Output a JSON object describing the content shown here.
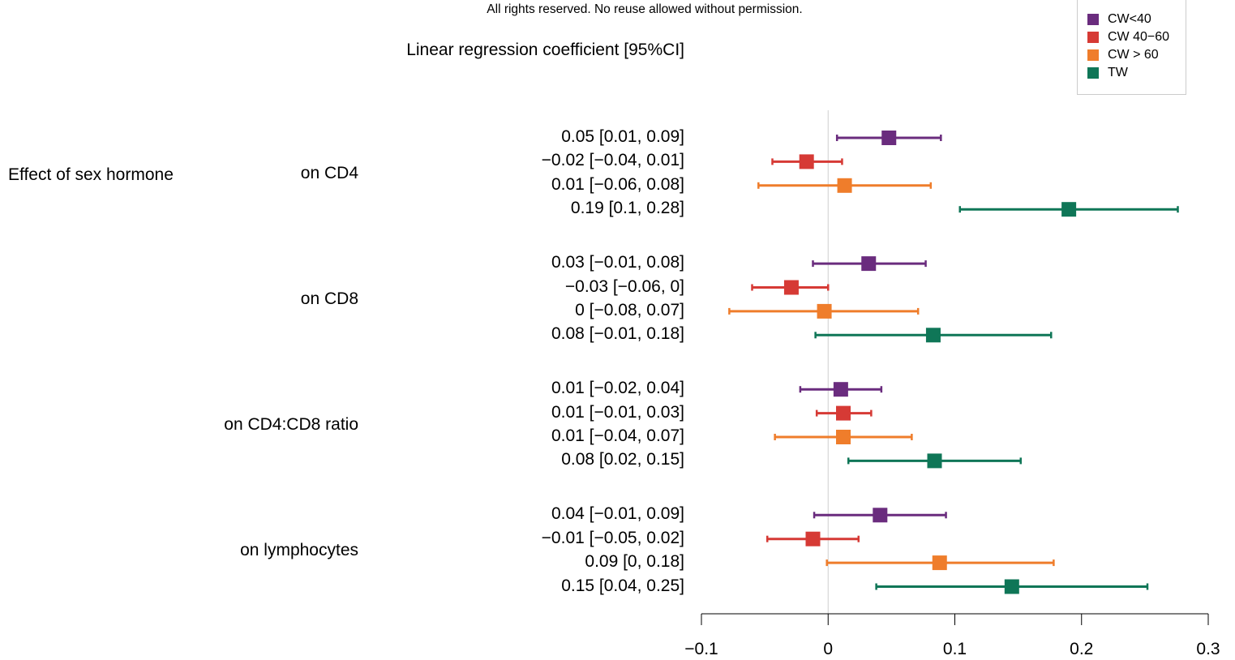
{
  "notice": {
    "line2": "All rights reserved. No reuse allowed without permission."
  },
  "ci_heading": "Linear regression coefficient [95%CI]",
  "effect_label": "Effect of sex hormone",
  "legend": [
    {
      "label": "CW<40",
      "color": "#6a2c7e"
    },
    {
      "label": "CW 40−60",
      "color": "#d63a35"
    },
    {
      "label": "CW > 60",
      "color": "#ef7d2b"
    },
    {
      "label": "TW",
      "color": "#0f7657"
    }
  ],
  "chart_data": {
    "type": "forest",
    "xlabel": "",
    "x_ticks": [
      -0.1,
      0,
      0.1,
      0.2,
      0.3
    ],
    "x_tick_labels": [
      "−0.1",
      "0",
      "0.1",
      "0.2",
      "0.3"
    ],
    "xlim": [
      -0.1,
      0.3
    ],
    "reference_line": 0,
    "groups": [
      {
        "outcome": "on CD4",
        "rows": [
          {
            "series": "CW<40",
            "estimate": 0.048,
            "low": 0.007,
            "high": 0.089,
            "label": "0.05 [0.01, 0.09]"
          },
          {
            "series": "CW 40−60",
            "estimate": -0.017,
            "low": -0.044,
            "high": 0.011,
            "label": "−0.02 [−0.04, 0.01]"
          },
          {
            "series": "CW > 60",
            "estimate": 0.013,
            "low": -0.055,
            "high": 0.081,
            "label": "0.01 [−0.06, 0.08]"
          },
          {
            "series": "TW",
            "estimate": 0.19,
            "low": 0.104,
            "high": 0.276,
            "label": "0.19 [0.1, 0.28]"
          }
        ]
      },
      {
        "outcome": "on CD8",
        "rows": [
          {
            "series": "CW<40",
            "estimate": 0.032,
            "low": -0.012,
            "high": 0.077,
            "label": "0.03 [−0.01, 0.08]"
          },
          {
            "series": "CW 40−60",
            "estimate": -0.029,
            "low": -0.06,
            "high": 0.0,
            "label": "−0.03 [−0.06, 0]"
          },
          {
            "series": "CW > 60",
            "estimate": -0.003,
            "low": -0.078,
            "high": 0.071,
            "label": "0 [−0.08, 0.07]"
          },
          {
            "series": "TW",
            "estimate": 0.083,
            "low": -0.01,
            "high": 0.176,
            "label": "0.08 [−0.01, 0.18]"
          }
        ]
      },
      {
        "outcome": "on CD4:CD8 ratio",
        "rows": [
          {
            "series": "CW<40",
            "estimate": 0.01,
            "low": -0.022,
            "high": 0.042,
            "label": "0.01 [−0.02, 0.04]"
          },
          {
            "series": "CW 40−60",
            "estimate": 0.012,
            "low": -0.009,
            "high": 0.034,
            "label": "0.01 [−0.01, 0.03]"
          },
          {
            "series": "CW > 60",
            "estimate": 0.012,
            "low": -0.042,
            "high": 0.066,
            "label": "0.01 [−0.04, 0.07]"
          },
          {
            "series": "TW",
            "estimate": 0.084,
            "low": 0.016,
            "high": 0.152,
            "label": "0.08 [0.02, 0.15]"
          }
        ]
      },
      {
        "outcome": "on lymphocytes",
        "rows": [
          {
            "series": "CW<40",
            "estimate": 0.041,
            "low": -0.011,
            "high": 0.093,
            "label": "0.04 [−0.01, 0.09]"
          },
          {
            "series": "CW 40−60",
            "estimate": -0.012,
            "low": -0.048,
            "high": 0.024,
            "label": "−0.01 [−0.05, 0.02]"
          },
          {
            "series": "CW > 60",
            "estimate": 0.088,
            "low": -0.001,
            "high": 0.178,
            "label": "0.09 [0, 0.18]"
          },
          {
            "series": "TW",
            "estimate": 0.145,
            "low": 0.038,
            "high": 0.252,
            "label": "0.15 [0.04, 0.25]"
          }
        ]
      }
    ]
  }
}
